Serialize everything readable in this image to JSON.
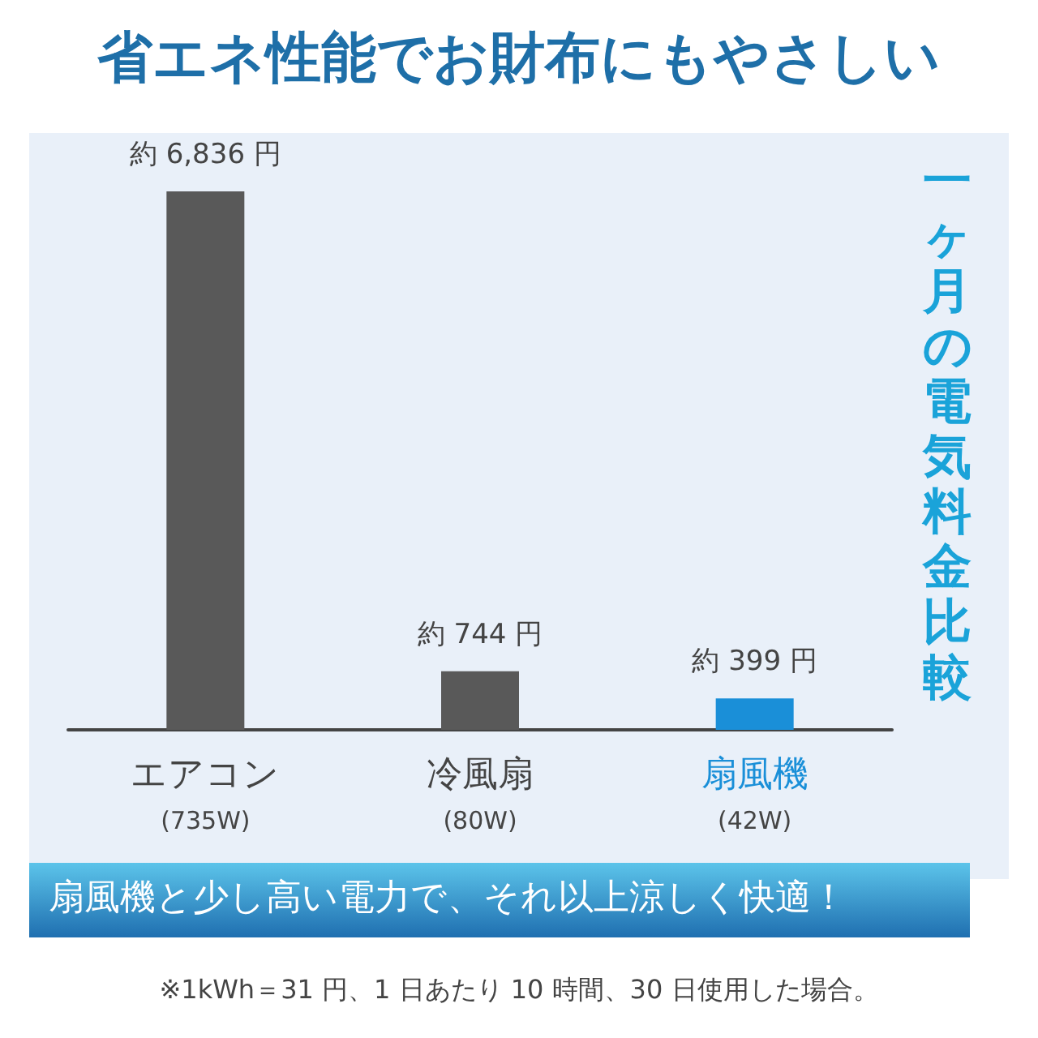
{
  "chart_data": {
    "type": "bar",
    "title": "省エネ性能でお財布にもやさしい",
    "ylabel": "一ヶ月の電気料金比較",
    "categories": [
      "エアコン\n(735W)",
      "冷風扇\n(80W)",
      "扇風機\n(42W)"
    ],
    "values": [
      6836,
      744,
      399
    ],
    "colors": [
      "#595959",
      "#595959",
      "#1a8fd8"
    ],
    "value_labels": [
      "約 6,836 円",
      "約 744 円",
      "約 399 円"
    ],
    "annotations": [
      "扇風機と少し高い電力で、それ以上涼しく快適！",
      "※1kWh＝31 円、1 日あたり 10 時間、30 日使用した場合。"
    ]
  }
}
